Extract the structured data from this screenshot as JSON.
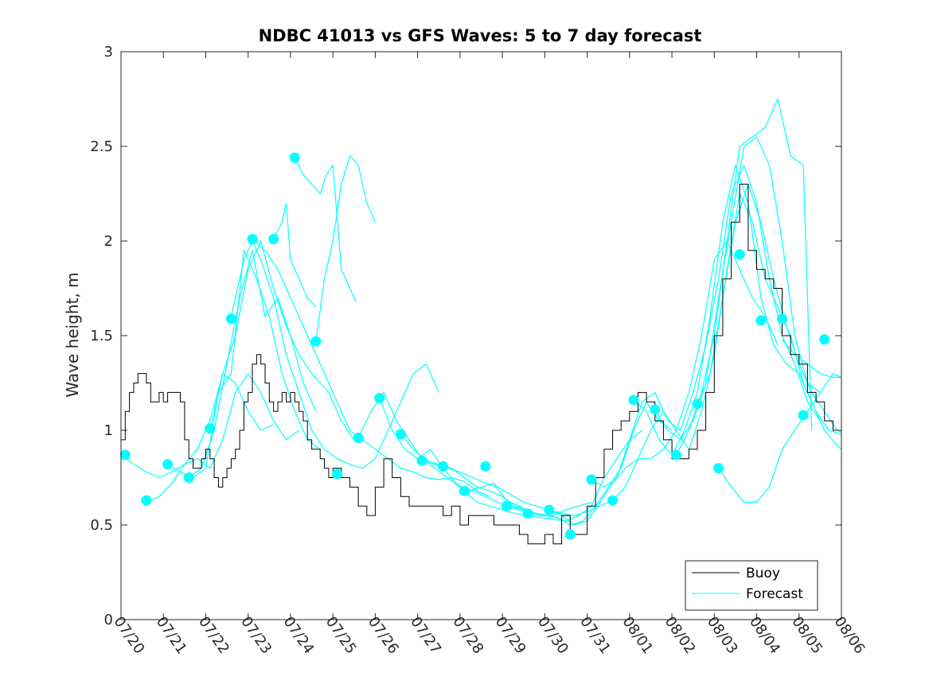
{
  "chart_data": {
    "type": "line",
    "title": "NDBC 41013 vs GFS Waves: 5 to 7 day forecast",
    "xlabel": "",
    "ylabel": "Wave height, m",
    "x_tick_labels": [
      "07/20",
      "07/21",
      "07/22",
      "07/23",
      "07/24",
      "07/25",
      "07/26",
      "07/27",
      "07/28",
      "07/29",
      "07/30",
      "07/31",
      "08/01",
      "08/02",
      "08/03",
      "08/04",
      "08/05",
      "08/06"
    ],
    "xlim_days": [
      0,
      17
    ],
    "ylim": [
      0,
      3
    ],
    "y_ticks": [
      "0",
      "0.5",
      "1",
      "1.5",
      "2",
      "2.5",
      "3"
    ],
    "grid": false,
    "legend": {
      "location": "bottom-right",
      "entries": [
        "Buoy",
        "Forecast"
      ]
    },
    "colors": {
      "buoy": "#000000",
      "forecast": "#00ffff"
    },
    "buoy": {
      "name": "Buoy",
      "x_days": [
        0.0,
        0.1,
        0.2,
        0.3,
        0.4,
        0.5,
        0.6,
        0.7,
        0.8,
        0.9,
        1.0,
        1.1,
        1.2,
        1.3,
        1.4,
        1.5,
        1.6,
        1.7,
        1.8,
        1.9,
        2.0,
        2.1,
        2.2,
        2.3,
        2.4,
        2.5,
        2.6,
        2.7,
        2.8,
        2.9,
        3.0,
        3.1,
        3.2,
        3.3,
        3.4,
        3.5,
        3.6,
        3.7,
        3.8,
        3.9,
        4.0,
        4.1,
        4.2,
        4.3,
        4.4,
        4.5,
        4.6,
        4.7,
        4.8,
        4.9,
        5.0,
        5.2,
        5.4,
        5.6,
        5.8,
        6.0,
        6.2,
        6.4,
        6.6,
        6.8,
        7.0,
        7.2,
        7.4,
        7.6,
        7.8,
        8.0,
        8.2,
        8.4,
        8.6,
        8.8,
        9.0,
        9.2,
        9.4,
        9.6,
        9.8,
        10.0,
        10.2,
        10.4,
        10.6,
        10.8,
        11.0,
        11.2,
        11.4,
        11.6,
        11.8,
        12.0,
        12.2,
        12.4,
        12.6,
        12.8,
        13.0,
        13.2,
        13.4,
        13.6,
        13.8,
        14.0,
        14.2,
        14.4,
        14.6,
        14.8,
        15.0,
        15.2,
        15.4,
        15.6,
        15.8,
        16.0,
        16.2,
        16.4,
        16.6,
        16.8,
        17.0
      ],
      "values": [
        0.95,
        1.1,
        1.2,
        1.25,
        1.3,
        1.3,
        1.25,
        1.15,
        1.15,
        1.2,
        1.15,
        1.2,
        1.2,
        1.2,
        1.15,
        0.95,
        0.85,
        0.8,
        0.8,
        0.85,
        0.9,
        0.85,
        0.75,
        0.7,
        0.75,
        0.8,
        0.85,
        0.9,
        1.0,
        1.15,
        1.2,
        1.35,
        1.4,
        1.35,
        1.25,
        1.15,
        1.1,
        1.15,
        1.2,
        1.15,
        1.2,
        1.15,
        1.1,
        1.05,
        0.95,
        0.9,
        0.9,
        0.85,
        0.8,
        0.75,
        0.8,
        0.75,
        0.7,
        0.6,
        0.55,
        0.7,
        0.85,
        0.75,
        0.65,
        0.6,
        0.6,
        0.6,
        0.6,
        0.55,
        0.6,
        0.5,
        0.55,
        0.55,
        0.55,
        0.5,
        0.5,
        0.5,
        0.45,
        0.4,
        0.4,
        0.45,
        0.4,
        0.55,
        0.45,
        0.45,
        0.6,
        0.75,
        0.9,
        1.0,
        1.05,
        1.1,
        1.2,
        1.15,
        1.05,
        0.95,
        0.85,
        0.85,
        0.9,
        1.0,
        1.2,
        1.5,
        1.8,
        2.1,
        2.3,
        1.95,
        1.85,
        1.8,
        1.75,
        1.5,
        1.4,
        1.35,
        1.2,
        1.15,
        1.05,
        1.0,
        1.0
      ]
    },
    "forecast_series": [
      {
        "x_days": [
          0.0,
          0.3,
          0.6,
          0.9,
          1.2,
          1.5,
          1.8,
          2.1,
          2.4,
          2.7,
          3.0,
          3.3,
          3.6,
          3.9,
          4.2
        ],
        "values": [
          0.87,
          0.82,
          0.78,
          0.75,
          0.78,
          0.82,
          0.85,
          0.8,
          0.95,
          1.2,
          1.3,
          1.2,
          1.05,
          0.95,
          1.0
        ]
      },
      {
        "x_days": [
          0.6,
          0.9,
          1.2,
          1.5,
          1.8,
          2.1,
          2.4,
          2.7,
          3.0,
          3.3,
          3.6
        ],
        "values": [
          0.62,
          0.65,
          0.72,
          0.82,
          0.9,
          1.05,
          1.3,
          1.25,
          1.1,
          1.0,
          1.03
        ]
      },
      {
        "x_days": [
          1.1,
          1.4,
          1.7,
          2.0,
          2.3,
          2.6,
          2.9,
          3.2,
          3.5,
          3.8,
          4.1,
          4.4,
          4.7
        ],
        "values": [
          0.82,
          0.78,
          0.75,
          0.8,
          1.2,
          1.3,
          1.95,
          1.8,
          1.6,
          1.3,
          1.1,
          0.95,
          0.9
        ]
      },
      {
        "x_days": [
          1.6,
          1.9,
          2.2,
          2.5,
          2.8,
          3.1,
          3.4,
          3.7,
          4.0,
          4.3,
          4.6
        ],
        "values": [
          0.75,
          0.8,
          1.0,
          1.35,
          1.7,
          1.95,
          1.6,
          1.7,
          1.5,
          1.25,
          1.1
        ]
      },
      {
        "x_days": [
          2.1,
          2.4,
          2.7,
          3.0,
          3.3,
          3.6,
          3.9,
          4.2,
          4.5,
          4.9,
          5.2,
          5.5
        ],
        "values": [
          1.0,
          1.3,
          1.5,
          1.85,
          2.0,
          1.75,
          1.55,
          1.4,
          1.3,
          1.2,
          1.05,
          0.95
        ]
      },
      {
        "x_days": [
          2.6,
          2.9,
          3.1,
          3.3,
          3.6,
          3.9,
          4.2,
          4.5,
          4.8,
          5.1,
          5.4,
          5.7,
          6.0,
          6.3,
          6.6,
          6.9,
          7.2,
          7.5
        ],
        "values": [
          1.6,
          1.9,
          2.0,
          1.9,
          1.7,
          1.4,
          1.2,
          1.0,
          0.9,
          0.85,
          0.82,
          0.8,
          0.85,
          1.0,
          1.15,
          1.3,
          1.35,
          1.2
        ]
      },
      {
        "x_days": [
          3.1,
          3.4,
          3.7,
          3.9,
          4.2,
          4.5,
          4.8,
          5.1,
          5.4,
          5.7,
          6.0,
          6.3,
          6.6,
          6.9,
          7.2,
          7.5,
          7.8,
          8.1,
          8.4,
          8.7
        ],
        "values": [
          2.01,
          1.95,
          1.85,
          1.75,
          1.6,
          1.45,
          1.3,
          1.15,
          1.0,
          0.95,
          0.9,
          0.85,
          0.8,
          0.78,
          0.75,
          0.74,
          0.75,
          0.73,
          0.68,
          0.65
        ]
      },
      {
        "x_days": [
          3.6,
          3.8,
          3.9,
          4.0,
          4.2,
          4.4,
          4.6
        ],
        "values": [
          2.01,
          2.1,
          2.2,
          1.9,
          1.8,
          1.7,
          1.65
        ]
      },
      {
        "x_days": [
          4.1,
          4.3,
          4.5,
          4.7,
          4.85,
          5.0,
          5.2,
          5.4,
          5.55
        ],
        "values": [
          2.44,
          2.35,
          2.3,
          2.25,
          2.35,
          2.4,
          1.85,
          1.75,
          1.68
        ]
      },
      {
        "x_days": [
          4.6,
          4.8,
          5.0,
          5.2,
          5.4,
          5.6,
          5.8,
          6.0
        ],
        "values": [
          1.47,
          1.8,
          2.0,
          2.3,
          2.45,
          2.4,
          2.2,
          2.1
        ]
      },
      {
        "x_days": [
          5.6,
          5.9,
          6.2,
          6.5,
          6.8,
          7.1,
          7.4,
          7.7,
          8.0,
          8.3,
          8.6,
          8.9,
          9.2,
          9.5,
          9.8,
          10.1,
          10.4
        ],
        "values": [
          0.96,
          1.1,
          1.2,
          1.05,
          0.95,
          0.85,
          0.8,
          0.75,
          0.7,
          0.68,
          0.65,
          0.62,
          0.6,
          0.58,
          0.56,
          0.55,
          0.53
        ]
      },
      {
        "x_days": [
          6.1,
          6.4,
          6.7,
          7.0,
          7.3,
          7.6,
          7.9,
          8.2,
          8.5,
          8.8,
          9.1,
          9.4,
          9.7,
          10.0,
          10.3,
          10.6
        ],
        "values": [
          1.17,
          1.0,
          0.9,
          0.85,
          0.9,
          0.8,
          0.72,
          0.68,
          0.7,
          0.72,
          0.63,
          0.6,
          0.56,
          0.55,
          0.57,
          0.55
        ]
      },
      {
        "x_days": [
          6.6,
          6.9,
          7.2,
          7.5,
          7.8,
          8.1,
          8.4,
          8.7,
          9.0,
          9.3,
          9.6,
          9.9,
          10.2,
          10.5,
          10.8,
          11.1
        ],
        "values": [
          0.98,
          0.9,
          0.84,
          0.82,
          0.8,
          0.75,
          0.7,
          0.68,
          0.65,
          0.6,
          0.58,
          0.55,
          0.55,
          0.58,
          0.6,
          0.62
        ]
      },
      {
        "x_days": [
          7.1,
          7.4,
          7.7,
          8.0,
          8.3,
          8.6,
          8.9,
          9.2,
          9.5,
          9.8,
          10.1,
          10.4,
          10.7,
          11.0,
          11.3,
          11.6
        ],
        "values": [
          0.84,
          0.82,
          0.8,
          0.78,
          0.75,
          0.72,
          0.7,
          0.66,
          0.62,
          0.6,
          0.58,
          0.56,
          0.55,
          0.57,
          0.6,
          0.63
        ]
      },
      {
        "x_days": [
          8.1,
          8.4,
          8.7,
          9.0,
          9.3,
          9.6,
          9.9,
          10.2,
          10.5,
          10.8,
          11.1,
          11.4,
          11.7,
          12.0,
          12.3
        ],
        "values": [
          0.68,
          0.62,
          0.6,
          0.58,
          0.56,
          0.55,
          0.54,
          0.53,
          0.52,
          0.55,
          0.6,
          0.75,
          0.85,
          0.95,
          1.0
        ]
      },
      {
        "x_days": [
          9.1,
          9.4,
          9.7,
          10.0,
          10.3,
          10.6,
          10.9,
          11.2,
          11.5,
          11.8,
          12.1,
          12.4,
          12.7,
          13.0
        ],
        "values": [
          0.6,
          0.58,
          0.56,
          0.55,
          0.54,
          0.5,
          0.52,
          0.6,
          0.7,
          0.8,
          1.0,
          1.15,
          1.05,
          1.0
        ]
      },
      {
        "x_days": [
          10.1,
          10.4,
          10.7,
          11.0,
          11.3,
          11.6,
          11.9,
          12.2,
          12.5,
          12.8,
          13.1,
          13.4,
          13.7,
          14.0,
          14.3,
          14.6,
          14.9,
          15.2,
          15.5
        ],
        "values": [
          0.58,
          0.55,
          0.5,
          0.52,
          0.62,
          0.72,
          0.8,
          0.85,
          0.85,
          0.9,
          1.0,
          1.2,
          1.5,
          1.9,
          2.0,
          1.85,
          1.7,
          1.6,
          1.45
        ]
      },
      {
        "x_days": [
          11.1,
          11.4,
          11.7,
          12.0,
          12.3,
          12.6,
          12.9,
          13.2,
          13.5,
          13.8,
          14.1,
          14.4,
          14.7,
          15.0,
          15.3,
          15.6,
          15.9,
          16.2,
          16.5
        ],
        "values": [
          0.74,
          0.7,
          0.75,
          0.95,
          1.15,
          1.2,
          1.05,
          1.0,
          1.2,
          1.45,
          1.8,
          2.25,
          2.4,
          2.2,
          1.8,
          1.5,
          1.35,
          1.15,
          1.05
        ]
      },
      {
        "x_days": [
          11.6,
          11.9,
          12.2,
          12.5,
          12.8,
          13.1,
          13.4,
          13.7,
          14.0,
          14.3,
          14.6,
          14.9,
          15.2,
          15.5,
          15.8,
          16.1,
          16.4,
          16.7,
          17.0
        ],
        "values": [
          0.63,
          0.7,
          0.85,
          1.0,
          1.1,
          1.0,
          0.9,
          1.1,
          1.4,
          1.85,
          2.25,
          2.1,
          1.8,
          1.65,
          1.5,
          1.25,
          1.1,
          1.0,
          0.98
        ]
      },
      {
        "x_days": [
          12.1,
          12.4,
          12.7,
          13.0,
          13.3,
          13.6,
          13.9,
          14.2,
          14.5,
          14.8,
          15.1,
          15.4,
          15.7,
          16.0,
          16.3,
          16.6,
          16.9,
          17.0
        ],
        "values": [
          1.16,
          1.1,
          0.95,
          0.87,
          1.0,
          1.2,
          1.6,
          2.1,
          2.4,
          2.2,
          1.7,
          1.45,
          1.35,
          1.3,
          1.15,
          1.0,
          0.92,
          0.9
        ]
      },
      {
        "x_days": [
          12.6,
          12.9,
          13.2,
          13.5,
          13.8,
          14.1,
          14.4,
          14.7,
          15.0,
          15.3,
          15.6,
          15.9,
          16.2,
          16.5
        ],
        "values": [
          1.11,
          1.0,
          0.95,
          1.05,
          1.25,
          1.7,
          2.1,
          2.5,
          2.55,
          2.4,
          2.0,
          1.5,
          1.25,
          1.2
        ]
      },
      {
        "x_days": [
          13.1,
          13.4,
          13.7,
          14.0,
          14.3,
          14.6,
          14.9,
          15.2,
          15.5,
          15.8,
          16.1,
          16.3
        ],
        "values": [
          0.87,
          1.0,
          1.2,
          1.5,
          2.0,
          2.5,
          2.55,
          2.6,
          2.75,
          2.45,
          2.4,
          1.0
        ]
      },
      {
        "x_days": [
          13.6,
          13.9,
          14.2,
          14.5,
          14.8,
          15.1,
          15.4,
          15.7,
          16.0,
          16.3,
          16.6,
          16.9,
          17.0
        ],
        "values": [
          1.14,
          1.3,
          1.7,
          2.1,
          2.3,
          2.1,
          1.8,
          1.55,
          1.35,
          1.2,
          1.1,
          1.0,
          0.99
        ]
      },
      {
        "x_days": [
          14.1,
          14.4,
          14.7,
          15.0,
          15.3,
          15.6,
          15.9,
          16.2,
          16.5,
          16.8,
          17.0
        ],
        "values": [
          0.8,
          0.7,
          0.62,
          0.62,
          0.7,
          0.9,
          1.0,
          1.1,
          1.2,
          1.3,
          1.28
        ]
      },
      {
        "x_days": [
          15.6,
          15.9,
          16.2,
          16.5,
          16.8,
          17.0
        ],
        "values": [
          1.48,
          1.4,
          1.35,
          1.3,
          1.28,
          1.28
        ]
      }
    ],
    "forecast_markers": {
      "name": "Forecast",
      "x_days": [
        0.1,
        0.6,
        1.1,
        1.6,
        2.1,
        2.6,
        3.1,
        3.6,
        4.1,
        4.6,
        5.1,
        5.6,
        6.1,
        6.6,
        7.1,
        7.6,
        8.1,
        8.6,
        9.1,
        9.6,
        10.1,
        10.6,
        11.1,
        11.6,
        12.1,
        12.6,
        13.1,
        13.6,
        14.1,
        14.6,
        15.1,
        15.6,
        16.1,
        16.6
      ],
      "values": [
        0.87,
        0.63,
        0.82,
        0.75,
        1.01,
        1.59,
        2.01,
        2.01,
        2.44,
        1.47,
        0.77,
        0.96,
        1.17,
        0.98,
        0.84,
        0.81,
        0.68,
        0.81,
        0.6,
        0.56,
        0.58,
        0.45,
        0.74,
        0.63,
        1.16,
        1.11,
        0.87,
        1.14,
        0.8,
        1.93,
        1.58,
        1.59,
        1.08,
        1.48
      ]
    }
  }
}
